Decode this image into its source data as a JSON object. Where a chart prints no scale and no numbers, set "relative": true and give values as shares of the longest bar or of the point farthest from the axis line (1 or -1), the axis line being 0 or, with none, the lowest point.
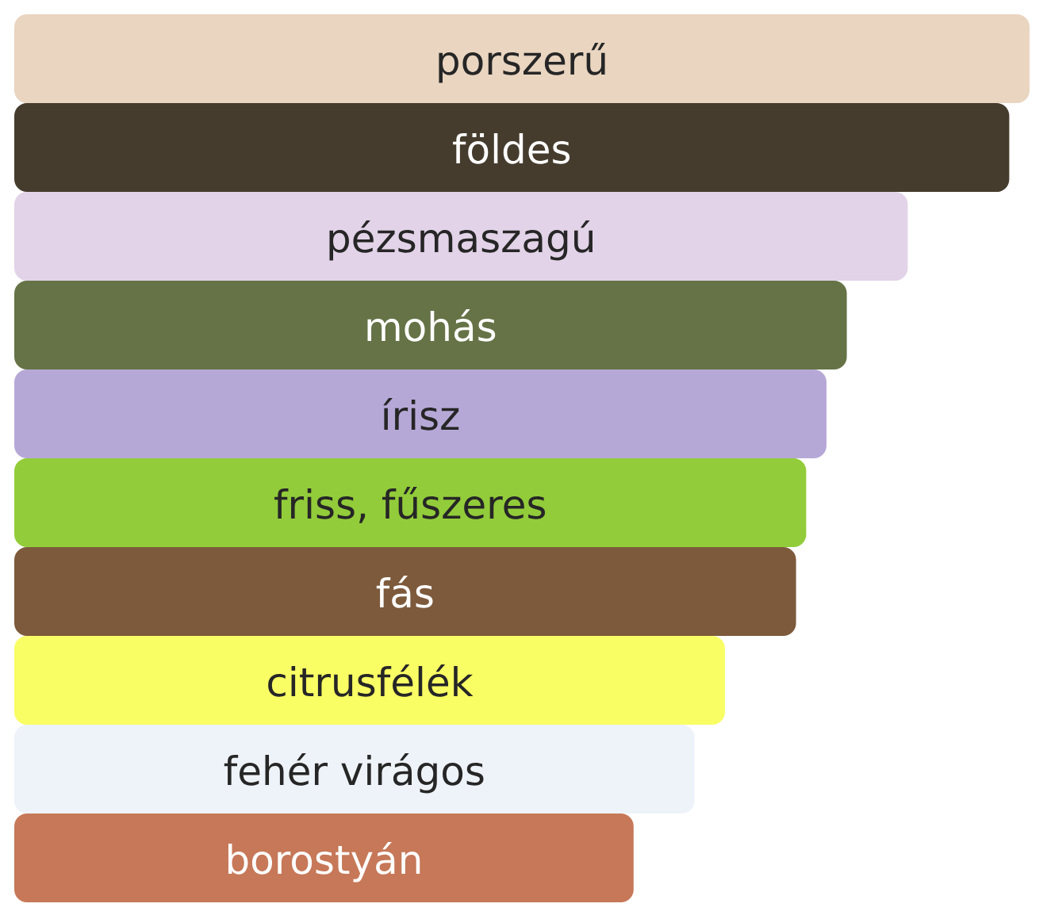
{
  "chart_data": {
    "type": "bar",
    "orientation": "horizontal",
    "relative": true,
    "categories": [
      "porszerű",
      "földes",
      "pézsmaszagú",
      "mohás",
      "írisz",
      "friss, fűszeres",
      "fás",
      "citrusfélék",
      "fehér virágos",
      "borostyán"
    ],
    "values": [
      1,
      0.98,
      0.88,
      0.82,
      0.8,
      0.78,
      0.77,
      0.7,
      0.67,
      0.61
    ],
    "colors": [
      "#e9d5c0",
      "#463c2e",
      "#e2d3e8",
      "#657346",
      "#b6a8d6",
      "#92cc3a",
      "#7d5a3c",
      "#f9fe64",
      "#eef3f9",
      "#c67858"
    ]
  }
}
